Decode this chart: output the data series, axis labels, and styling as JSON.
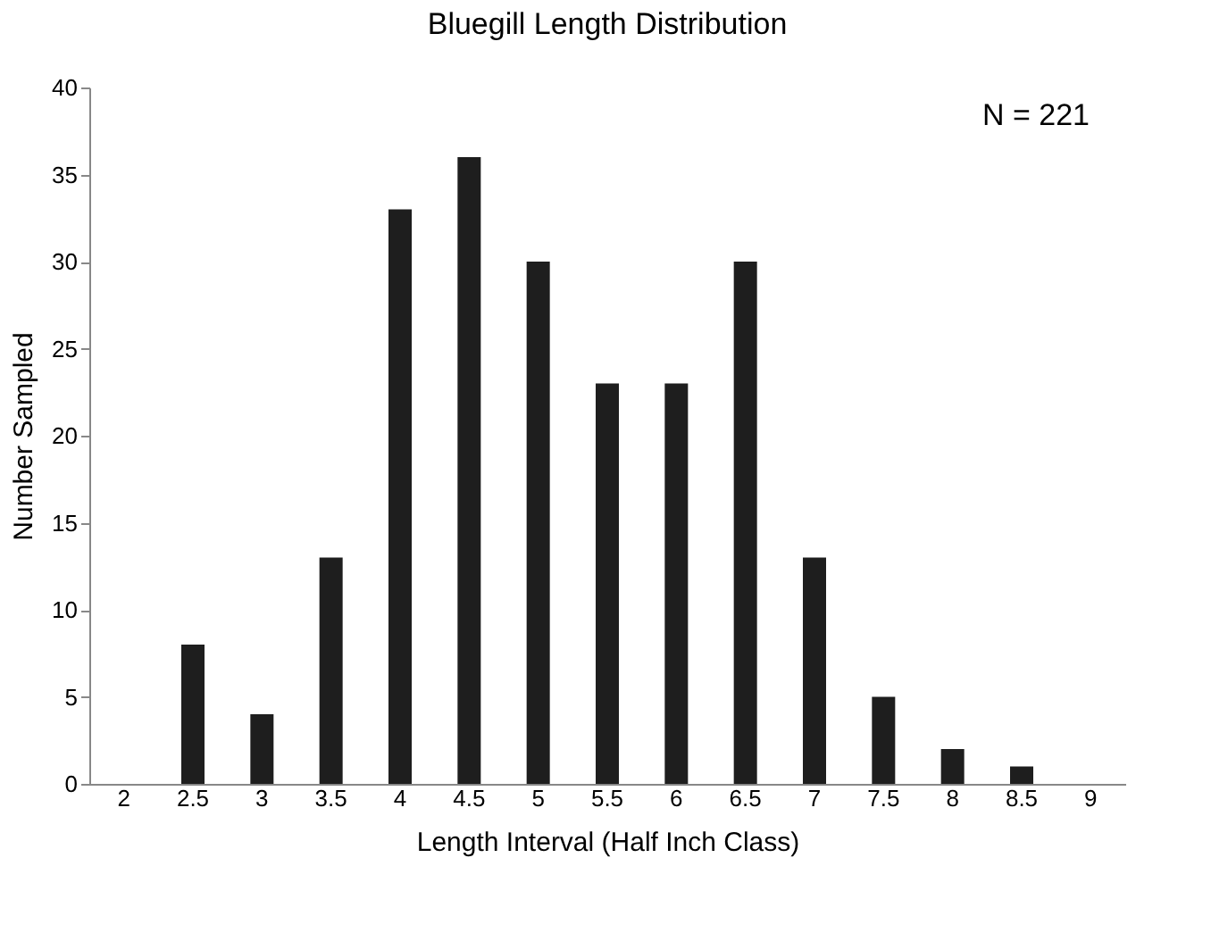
{
  "chart_data": {
    "type": "bar",
    "title": "Bluegill Length Distribution",
    "xlabel": "Length Interval (Half Inch Class)",
    "ylabel": "Number Sampled",
    "categories": [
      "2",
      "2.5",
      "3",
      "3.5",
      "4",
      "4.5",
      "5",
      "5.5",
      "6",
      "6.5",
      "7",
      "7.5",
      "8",
      "8.5",
      "9"
    ],
    "values": [
      0,
      8,
      4,
      13,
      33,
      36,
      30,
      23,
      23,
      30,
      13,
      5,
      2,
      1,
      0
    ],
    "color": "#1e1e1e",
    "ylim": [
      0,
      40
    ],
    "yticks": [
      0,
      5,
      10,
      15,
      20,
      25,
      30,
      35,
      40
    ],
    "grid": false,
    "annotations": [
      "N = 221"
    ]
  }
}
